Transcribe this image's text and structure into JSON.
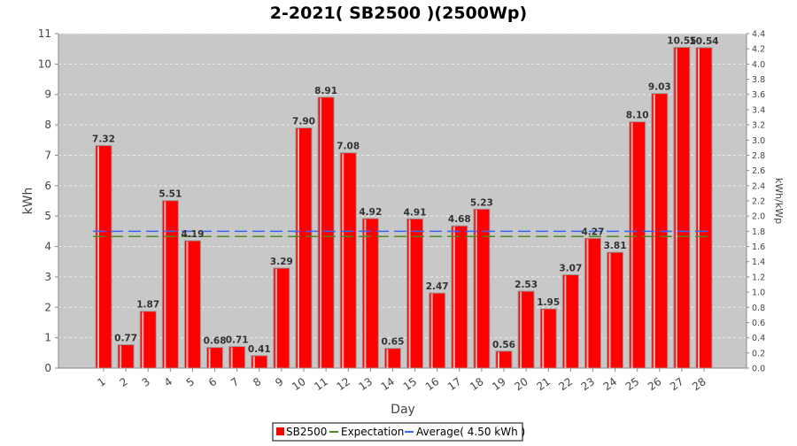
{
  "chart_data": {
    "type": "bar",
    "title": "2-2021( SB2500 )(2500Wp)",
    "xlabel": "Day",
    "ylabel": "kWh",
    "y2label": "kWh/kWp",
    "ylim": [
      0,
      11
    ],
    "y2lim": [
      0,
      4.4
    ],
    "yticks": [
      "0",
      "1",
      "2",
      "3",
      "4",
      "5",
      "6",
      "7",
      "8",
      "9",
      "10",
      "11"
    ],
    "y2ticks": [
      "0.0",
      "0.2",
      "0.4",
      "0.6",
      "0.8",
      "1.0",
      "1.2",
      "1.4",
      "1.6",
      "1.8",
      "2.0",
      "2.2",
      "2.4",
      "2.6",
      "2.8",
      "3.0",
      "3.2",
      "3.4",
      "3.6",
      "3.8",
      "4.0",
      "4.2",
      "4.4"
    ],
    "categories": [
      "1",
      "2",
      "3",
      "4",
      "5",
      "6",
      "7",
      "8",
      "9",
      "10",
      "11",
      "12",
      "13",
      "14",
      "15",
      "16",
      "17",
      "18",
      "19",
      "20",
      "21",
      "22",
      "23",
      "24",
      "25",
      "26",
      "27",
      "28"
    ],
    "series": [
      {
        "name": "SB2500",
        "color": "#ff0000",
        "values": [
          7.32,
          0.77,
          1.87,
          5.51,
          4.19,
          0.68,
          0.71,
          0.41,
          3.29,
          7.9,
          8.91,
          7.08,
          4.92,
          0.65,
          4.91,
          2.47,
          4.68,
          5.23,
          0.56,
          2.53,
          1.95,
          3.07,
          4.27,
          3.81,
          8.1,
          9.03,
          10.55,
          10.54
        ],
        "labels": [
          "7.32",
          "0.77",
          "1.87",
          "5.51",
          "4.19",
          "0.68",
          "0.71",
          "0.41",
          "3.29",
          "7.90",
          "8.91",
          "7.08",
          "4.92",
          "0.65",
          "4.91",
          "2.47",
          "4.68",
          "5.23",
          "0.56",
          "2.53",
          "1.95",
          "3.07",
          "4.27",
          "3.81",
          "8.10",
          "9.03",
          "10.55",
          "10.54"
        ]
      }
    ],
    "lines": [
      {
        "name": "Expectation",
        "value": 4.33,
        "color": "#4d8a1f"
      },
      {
        "name": "Average( 4.50 kWh )",
        "value": 4.5,
        "color": "#3366ff"
      }
    ],
    "legend": [
      "SB2500",
      "Expectation",
      "Average( 4.50 kWh )"
    ],
    "legend_position": "bottom",
    "grid": true
  }
}
